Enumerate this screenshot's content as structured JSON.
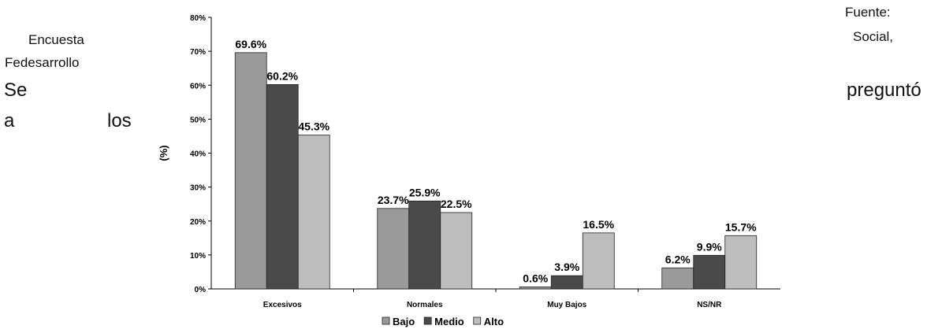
{
  "page_text": {
    "encuesta": "Encuesta",
    "fedesarrollo": "Fedesarrollo",
    "se": "Se",
    "a": "a",
    "los": "los",
    "fuente": "Fuente:",
    "social": "Social,",
    "pregunto": "preguntó"
  },
  "colors": {
    "bajo": "#9a9a9a",
    "medio": "#4a4a4a",
    "alto": "#bdbdbd",
    "axis": "#000000"
  },
  "chart_data": {
    "type": "bar",
    "categories": [
      "Excesivos",
      "Normales",
      "Muy Bajos",
      "NS/NR"
    ],
    "series": [
      {
        "name": "Bajo",
        "values": [
          69.6,
          23.7,
          0.6,
          6.2
        ],
        "labels": [
          "69.6%",
          "23.7%",
          "0.6%",
          "6.2%"
        ]
      },
      {
        "name": "Medio",
        "values": [
          60.2,
          25.9,
          3.9,
          9.9
        ],
        "labels": [
          "60.2%",
          "25.9%",
          "3.9%",
          "9.9%"
        ]
      },
      {
        "name": "Alto",
        "values": [
          45.3,
          22.5,
          16.5,
          15.7
        ],
        "labels": [
          "45.3%",
          "22.5%",
          "16.5%",
          "15.7%"
        ]
      }
    ],
    "ylabel": "(%)",
    "xlabel": "",
    "ylim": [
      0,
      80
    ],
    "yticks": [
      "0%",
      "10%",
      "20%",
      "30%",
      "40%",
      "50%",
      "60%",
      "70%",
      "80%"
    ],
    "legend_position": "bottom",
    "grid": false
  }
}
